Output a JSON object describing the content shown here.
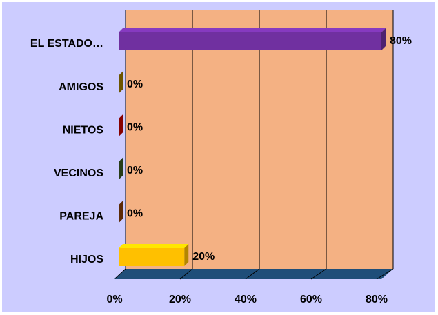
{
  "chart_data": {
    "type": "bar",
    "orientation": "horizontal",
    "categories": [
      "EL ESTADO…",
      "AMIGOS",
      "NIETOS",
      "VECINOS",
      "PAREJA",
      "HIJOS"
    ],
    "values": [
      80,
      0,
      0,
      0,
      0,
      20
    ],
    "value_labels": [
      "80%",
      "0%",
      "0%",
      "0%",
      "0%",
      "20%"
    ],
    "colors": [
      "#7030a0",
      "#9c7a00",
      "#c00000",
      "#375623",
      "#843c0c",
      "#ffc000"
    ],
    "xlim": [
      0,
      80
    ],
    "xticks": [
      {
        "value": 0,
        "label": "0%"
      },
      {
        "value": 20,
        "label": "20%"
      },
      {
        "value": 40,
        "label": "40%"
      },
      {
        "value": 60,
        "label": "60%"
      },
      {
        "value": 80,
        "label": "80%"
      }
    ],
    "grid": true
  }
}
